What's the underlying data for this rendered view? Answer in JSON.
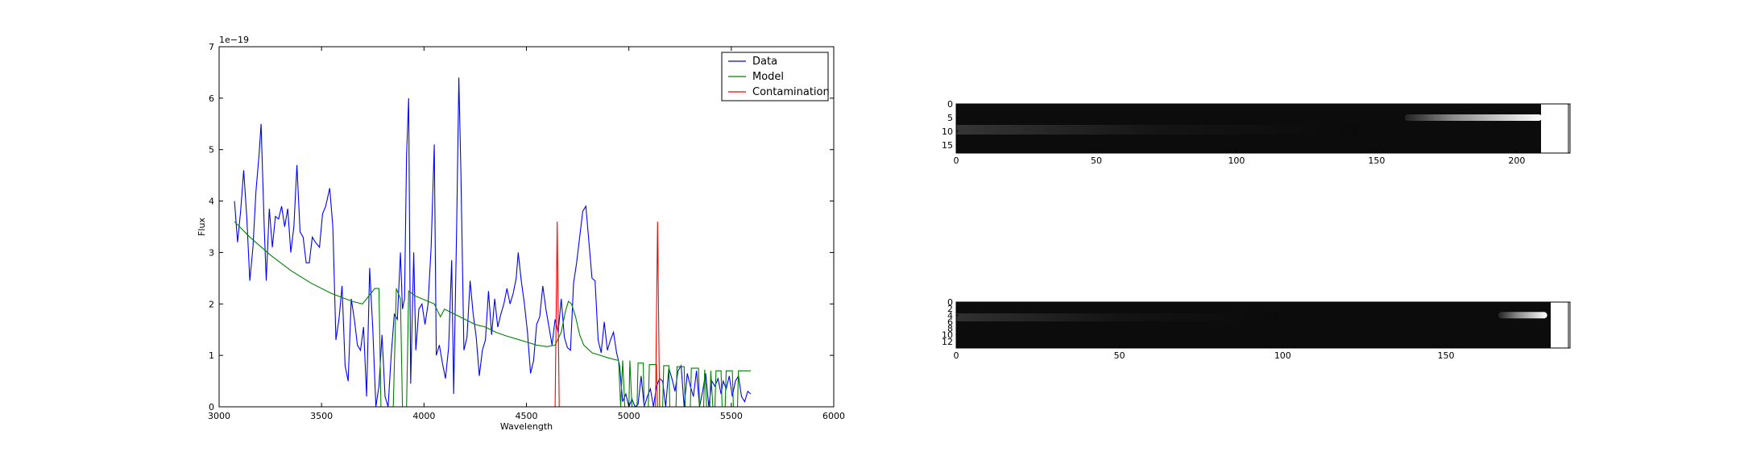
{
  "chart_data": [
    {
      "type": "line",
      "xlabel": "Wavelength",
      "ylabel": "Flux",
      "offset_text": "1e−19",
      "xlim": [
        3000,
        6000
      ],
      "ylim": [
        0,
        7
      ],
      "xticks": [
        3000,
        3500,
        4000,
        4500,
        5000,
        5500,
        6000
      ],
      "yticks": [
        0,
        1,
        2,
        3,
        4,
        5,
        6,
        7
      ],
      "legend": {
        "placement": "top-right",
        "entries": [
          "Data",
          "Model",
          "Contamination"
        ]
      },
      "series": [
        {
          "name": "Data",
          "color": "#0000ff",
          "points": [
            [
              3075,
              4.0
            ],
            [
              3090,
              3.2
            ],
            [
              3105,
              3.8
            ],
            [
              3120,
              4.6
            ],
            [
              3135,
              3.7
            ],
            [
              3150,
              2.45
            ],
            [
              3165,
              3.1
            ],
            [
              3180,
              4.2
            ],
            [
              3195,
              4.9
            ],
            [
              3205,
              5.5
            ],
            [
              3220,
              3.5
            ],
            [
              3230,
              2.45
            ],
            [
              3245,
              3.85
            ],
            [
              3260,
              3.1
            ],
            [
              3275,
              3.7
            ],
            [
              3290,
              3.65
            ],
            [
              3305,
              3.9
            ],
            [
              3320,
              3.5
            ],
            [
              3335,
              3.85
            ],
            [
              3350,
              3.0
            ],
            [
              3365,
              3.5
            ],
            [
              3380,
              4.7
            ],
            [
              3395,
              3.4
            ],
            [
              3410,
              3.3
            ],
            [
              3425,
              2.8
            ],
            [
              3440,
              2.8
            ],
            [
              3455,
              3.3
            ],
            [
              3470,
              3.2
            ],
            [
              3490,
              3.1
            ],
            [
              3505,
              3.75
            ],
            [
              3520,
              3.9
            ],
            [
              3540,
              4.25
            ],
            [
              3555,
              3.5
            ],
            [
              3570,
              1.3
            ],
            [
              3585,
              1.7
            ],
            [
              3600,
              2.35
            ],
            [
              3615,
              0.8
            ],
            [
              3630,
              0.5
            ],
            [
              3645,
              2.1
            ],
            [
              3660,
              1.7
            ],
            [
              3675,
              1.2
            ],
            [
              3690,
              1.1
            ],
            [
              3705,
              1.55
            ],
            [
              3720,
              0.2
            ],
            [
              3735,
              2.7
            ],
            [
              3750,
              1.5
            ],
            [
              3765,
              0.0
            ],
            [
              3780,
              0.4
            ],
            [
              3795,
              1.4
            ],
            [
              3810,
              0.2
            ],
            [
              3825,
              0.0
            ],
            [
              3840,
              1.0
            ],
            [
              3855,
              1.8
            ],
            [
              3870,
              1.7
            ],
            [
              3885,
              3.0
            ],
            [
              3895,
              1.9
            ],
            [
              3905,
              2.1
            ],
            [
              3915,
              4.9
            ],
            [
              3925,
              6.0
            ],
            [
              3935,
              0.45
            ],
            [
              3950,
              3.0
            ],
            [
              3960,
              1.1
            ],
            [
              3975,
              1.9
            ],
            [
              3990,
              2.0
            ],
            [
              4005,
              1.6
            ],
            [
              4020,
              2.0
            ],
            [
              4035,
              3.1
            ],
            [
              4050,
              5.1
            ],
            [
              4060,
              1.0
            ],
            [
              4075,
              1.2
            ],
            [
              4090,
              0.85
            ],
            [
              4105,
              0.55
            ],
            [
              4120,
              1.15
            ],
            [
              4135,
              2.85
            ],
            [
              4145,
              0.25
            ],
            [
              4160,
              3.6
            ],
            [
              4170,
              6.4
            ],
            [
              4180,
              4.6
            ],
            [
              4195,
              1.1
            ],
            [
              4210,
              1.35
            ],
            [
              4225,
              2.45
            ],
            [
              4240,
              1.8
            ],
            [
              4255,
              1.35
            ],
            [
              4270,
              0.6
            ],
            [
              4285,
              1.1
            ],
            [
              4300,
              1.3
            ],
            [
              4315,
              2.25
            ],
            [
              4330,
              1.4
            ],
            [
              4345,
              2.1
            ],
            [
              4360,
              1.55
            ],
            [
              4375,
              1.8
            ],
            [
              4390,
              2.0
            ],
            [
              4405,
              2.3
            ],
            [
              4420,
              2.0
            ],
            [
              4435,
              2.2
            ],
            [
              4450,
              2.5
            ],
            [
              4460,
              3.0
            ],
            [
              4475,
              2.45
            ],
            [
              4490,
              2.0
            ],
            [
              4505,
              1.45
            ],
            [
              4520,
              0.65
            ],
            [
              4535,
              0.9
            ],
            [
              4550,
              1.6
            ],
            [
              4565,
              1.75
            ],
            [
              4580,
              2.35
            ],
            [
              4595,
              1.9
            ],
            [
              4610,
              1.55
            ],
            [
              4625,
              1.2
            ],
            [
              4640,
              1.7
            ],
            [
              4655,
              1.45
            ],
            [
              4670,
              2.1
            ],
            [
              4685,
              1.35
            ],
            [
              4700,
              1.15
            ],
            [
              4715,
              1.1
            ],
            [
              4730,
              2.4
            ],
            [
              4745,
              2.8
            ],
            [
              4760,
              3.3
            ],
            [
              4775,
              3.8
            ],
            [
              4790,
              3.9
            ],
            [
              4805,
              3.2
            ],
            [
              4820,
              2.5
            ],
            [
              4835,
              2.45
            ],
            [
              4850,
              1.3
            ],
            [
              4865,
              1.05
            ],
            [
              4880,
              1.65
            ],
            [
              4895,
              1.1
            ],
            [
              4910,
              1.3
            ],
            [
              4925,
              1.45
            ],
            [
              4940,
              1.05
            ],
            [
              4955,
              0.8
            ],
            [
              4970,
              0.1
            ],
            [
              4985,
              0.25
            ],
            [
              5000,
              0.0
            ],
            [
              5015,
              0.15
            ],
            [
              5030,
              0.0
            ],
            [
              5045,
              0.05
            ],
            [
              5060,
              0.6
            ],
            [
              5075,
              0.0
            ],
            [
              5090,
              0.2
            ],
            [
              5105,
              0.35
            ],
            [
              5120,
              0.0
            ],
            [
              5135,
              0.4
            ],
            [
              5150,
              0.55
            ],
            [
              5165,
              0.5
            ],
            [
              5180,
              0.0
            ],
            [
              5195,
              0.75
            ],
            [
              5210,
              0.55
            ],
            [
              5225,
              0.3
            ],
            [
              5240,
              0.7
            ],
            [
              5255,
              0.8
            ],
            [
              5270,
              0.0
            ],
            [
              5285,
              0.65
            ],
            [
              5300,
              0.4
            ],
            [
              5315,
              0.2
            ],
            [
              5330,
              0.7
            ],
            [
              5345,
              0.0
            ],
            [
              5360,
              0.3
            ],
            [
              5375,
              0.65
            ],
            [
              5390,
              0.0
            ],
            [
              5405,
              0.5
            ],
            [
              5420,
              0.4
            ],
            [
              5435,
              0.55
            ],
            [
              5450,
              0.25
            ],
            [
              5460,
              0.5
            ],
            [
              5475,
              0.35
            ],
            [
              5490,
              0.6
            ],
            [
              5505,
              0.2
            ],
            [
              5520,
              0.5
            ],
            [
              5535,
              0.6
            ],
            [
              5550,
              0.2
            ],
            [
              5565,
              0.1
            ],
            [
              5580,
              0.3
            ],
            [
              5595,
              0.25
            ]
          ]
        },
        {
          "name": "Model",
          "color": "#008000",
          "points": [
            [
              3075,
              3.6
            ],
            [
              3150,
              3.3
            ],
            [
              3250,
              2.95
            ],
            [
              3350,
              2.65
            ],
            [
              3450,
              2.4
            ],
            [
              3550,
              2.2
            ],
            [
              3650,
              2.05
            ],
            [
              3700,
              2.0
            ],
            [
              3720,
              2.1
            ],
            [
              3760,
              2.3
            ],
            [
              3780,
              2.3
            ],
            [
              3790,
              0.0
            ],
            [
              3850,
              0.0
            ],
            [
              3865,
              2.3
            ],
            [
              3885,
              2.1
            ],
            [
              3895,
              0.0
            ],
            [
              3915,
              0.0
            ],
            [
              3925,
              2.25
            ],
            [
              3960,
              2.15
            ],
            [
              3990,
              2.1
            ],
            [
              4050,
              2.0
            ],
            [
              4080,
              1.75
            ],
            [
              4100,
              1.9
            ],
            [
              4150,
              1.8
            ],
            [
              4200,
              1.7
            ],
            [
              4250,
              1.6
            ],
            [
              4300,
              1.55
            ],
            [
              4350,
              1.45
            ],
            [
              4400,
              1.38
            ],
            [
              4450,
              1.32
            ],
            [
              4500,
              1.26
            ],
            [
              4550,
              1.2
            ],
            [
              4600,
              1.17
            ],
            [
              4640,
              1.2
            ],
            [
              4670,
              1.45
            ],
            [
              4690,
              1.85
            ],
            [
              4705,
              2.05
            ],
            [
              4720,
              2.0
            ],
            [
              4740,
              1.75
            ],
            [
              4760,
              1.4
            ],
            [
              4780,
              1.2
            ],
            [
              4820,
              1.05
            ],
            [
              4860,
              1.0
            ],
            [
              4900,
              0.95
            ],
            [
              4950,
              0.9
            ],
            [
              4960,
              0.0
            ],
            [
              4970,
              0.9
            ],
            [
              4980,
              0.0
            ],
            [
              5000,
              0.0
            ],
            [
              5005,
              0.9
            ],
            [
              5015,
              0.0
            ],
            [
              5040,
              0.0
            ],
            [
              5045,
              0.85
            ],
            [
              5070,
              0.85
            ],
            [
              5075,
              0.0
            ],
            [
              5095,
              0.0
            ],
            [
              5100,
              0.82
            ],
            [
              5135,
              0.82
            ],
            [
              5140,
              0.0
            ],
            [
              5165,
              0.0
            ],
            [
              5170,
              0.8
            ],
            [
              5195,
              0.8
            ],
            [
              5200,
              0.0
            ],
            [
              5230,
              0.0
            ],
            [
              5235,
              0.78
            ],
            [
              5270,
              0.78
            ],
            [
              5275,
              0.0
            ],
            [
              5300,
              0.0
            ],
            [
              5305,
              0.75
            ],
            [
              5340,
              0.75
            ],
            [
              5345,
              0.0
            ],
            [
              5365,
              0.0
            ],
            [
              5370,
              0.72
            ],
            [
              5380,
              0.0
            ],
            [
              5395,
              0.0
            ],
            [
              5400,
              0.7
            ],
            [
              5410,
              0.0
            ],
            [
              5420,
              0.0
            ],
            [
              5425,
              0.7
            ],
            [
              5450,
              0.7
            ],
            [
              5455,
              0.0
            ],
            [
              5470,
              0.0
            ],
            [
              5475,
              0.7
            ],
            [
              5505,
              0.7
            ],
            [
              5510,
              0.0
            ],
            [
              5530,
              0.0
            ],
            [
              5535,
              0.7
            ],
            [
              5595,
              0.7
            ]
          ]
        },
        {
          "name": "Contamination",
          "color": "#ff0000",
          "points": [
            [
              3075,
              0.0
            ],
            [
              4640,
              0.0
            ],
            [
              4650,
              3.6
            ],
            [
              4660,
              0.0
            ],
            [
              5130,
              0.0
            ],
            [
              5140,
              3.6
            ],
            [
              5150,
              0.0
            ],
            [
              5595,
              0.0
            ]
          ]
        }
      ]
    },
    {
      "type": "heatmap",
      "xticks": [
        0,
        50,
        100,
        150,
        200
      ],
      "yticks": [
        0,
        5,
        10,
        15
      ],
      "xlim": [
        0,
        219
      ],
      "ylim": [
        0,
        18
      ],
      "colormap": "grayscale",
      "trace": {
        "x_start": 160,
        "x_end": 209,
        "row": 5
      }
    },
    {
      "type": "heatmap",
      "xticks": [
        0,
        50,
        100,
        150
      ],
      "yticks": [
        0,
        2,
        4,
        6,
        8,
        10,
        12
      ],
      "xlim": [
        0,
        188
      ],
      "ylim": [
        0,
        14
      ],
      "colormap": "grayscale",
      "trace": {
        "x_start": 166,
        "x_end": 181,
        "row": 4
      }
    }
  ]
}
